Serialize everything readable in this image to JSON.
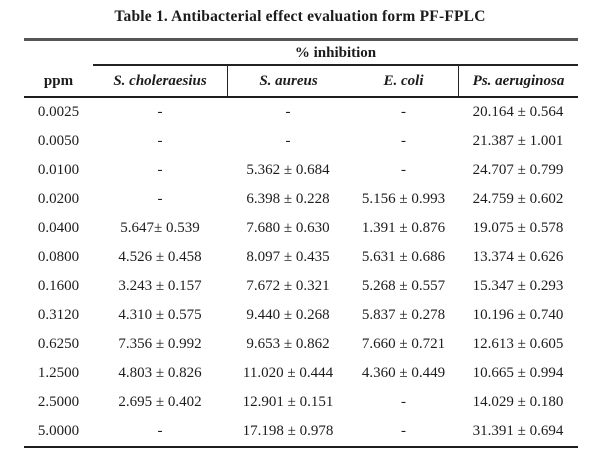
{
  "title": "Table 1. Antibacterial effect evaluation form PF-FPLC",
  "table": {
    "group_header": "% inhibition",
    "columns": [
      "ppm",
      "S. choleraesius",
      "S. aureus",
      "E. coli",
      "Ps. aeruginosa"
    ],
    "rows": [
      [
        "0.0025",
        "-",
        "-",
        "-",
        "20.164 ± 0.564"
      ],
      [
        "0.0050",
        "-",
        "-",
        "-",
        "21.387 ± 1.001"
      ],
      [
        "0.0100",
        "-",
        "5.362 ± 0.684",
        "-",
        "24.707 ± 0.799"
      ],
      [
        "0.0200",
        "-",
        "6.398 ± 0.228",
        "5.156 ± 0.993",
        "24.759 ± 0.602"
      ],
      [
        "0.0400",
        "5.647± 0.539",
        "7.680 ± 0.630",
        "1.391 ± 0.876",
        "19.075 ± 0.578"
      ],
      [
        "0.0800",
        "4.526 ± 0.458",
        "8.097 ± 0.435",
        "5.631 ± 0.686",
        "13.374 ± 0.626"
      ],
      [
        "0.1600",
        "3.243 ± 0.157",
        "7.672 ± 0.321",
        "5.268 ± 0.557",
        "15.347 ± 0.293"
      ],
      [
        "0.3120",
        "4.310 ± 0.575",
        "9.440 ± 0.268",
        "5.837 ± 0.278",
        "10.196 ± 0.740"
      ],
      [
        "0.6250",
        "7.356 ± 0.992",
        "9.653 ± 0.862",
        "7.660 ± 0.721",
        "12.613 ± 0.605"
      ],
      [
        "1.2500",
        "4.803 ± 0.826",
        "11.020 ± 0.444",
        "4.360 ± 0.449",
        "10.665 ± 0.994"
      ],
      [
        "2.5000",
        "2.695 ± 0.402",
        "12.901 ± 0.151",
        "-",
        "14.029 ± 0.180"
      ],
      [
        "5.0000",
        "-",
        "17.198 ± 0.978",
        "-",
        "31.391 ± 0.694"
      ]
    ]
  },
  "colors": {
    "background": "#ffffff",
    "text": "#1c1c1c",
    "rule_gray": "#565656",
    "rule_black": "#1e1e1e"
  }
}
